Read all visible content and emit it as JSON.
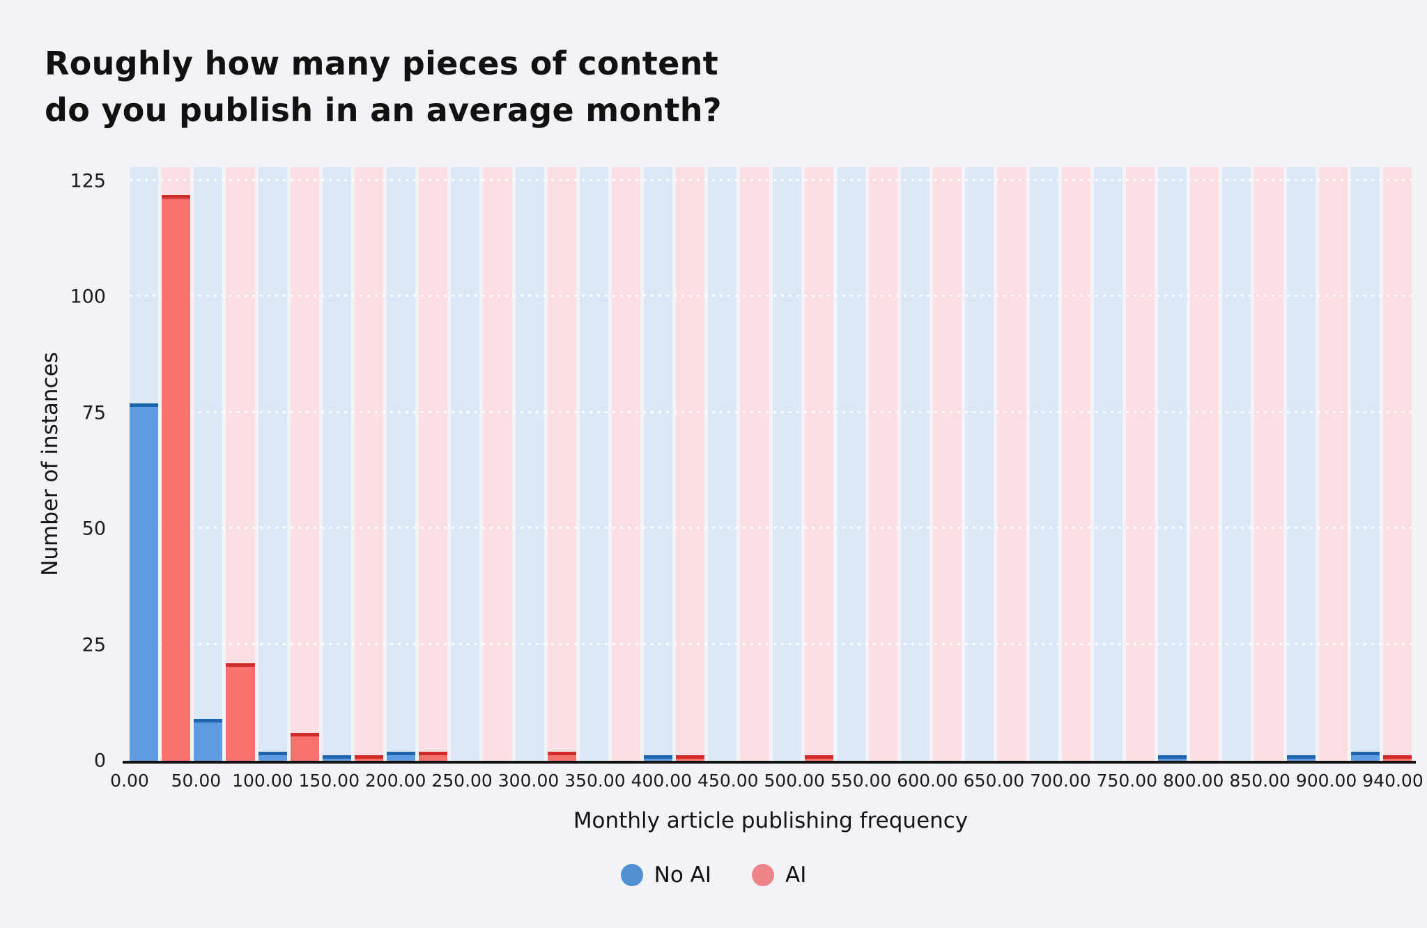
{
  "title": {
    "line1": "Roughly how many pieces of content",
    "line2": "do you publish in an average month?"
  },
  "chart_data": {
    "type": "bar",
    "title": "Roughly how many pieces of content do you publish in an average month?",
    "xlabel": "Monthly article publishing frequency",
    "ylabel": "Number of instances",
    "ylim": [
      0,
      128
    ],
    "yticks": [
      0,
      25,
      50,
      75,
      100,
      125
    ],
    "grid": "dotted-horizontal",
    "legend_position": "bottom",
    "categories": [
      "0.00",
      "50.00",
      "100.00",
      "150.00",
      "200.00",
      "250.00",
      "300.00",
      "350.00",
      "400.00",
      "450.00",
      "500.00",
      "550.00",
      "600.00",
      "650.00",
      "700.00",
      "750.00",
      "800.00",
      "850.00",
      "900.00",
      "940.00"
    ],
    "series": [
      {
        "name": "No AI",
        "bar_color": "#5e9de2",
        "cap_color": "#1f64ae",
        "track_color": "#dce8f7",
        "legend_dot_color": "#5191d2",
        "values": [
          77,
          9,
          2,
          1,
          2,
          0,
          0,
          0,
          1,
          0,
          0,
          0,
          0,
          0,
          0,
          0,
          1,
          0,
          1,
          2
        ]
      },
      {
        "name": "AI",
        "bar_color": "#f8716f",
        "cap_color": "#cf2b2b",
        "track_color": "#fbdfe2",
        "legend_dot_color": "#ee8489",
        "values": [
          122,
          21,
          6,
          1,
          2,
          0,
          2,
          0,
          1,
          0,
          1,
          0,
          0,
          0,
          0,
          0,
          0,
          0,
          0,
          1
        ]
      }
    ]
  },
  "colors": {
    "page_background": "#f1f3f6",
    "text": "#141414",
    "axis": "#111111",
    "gridline": "#ffffff"
  }
}
